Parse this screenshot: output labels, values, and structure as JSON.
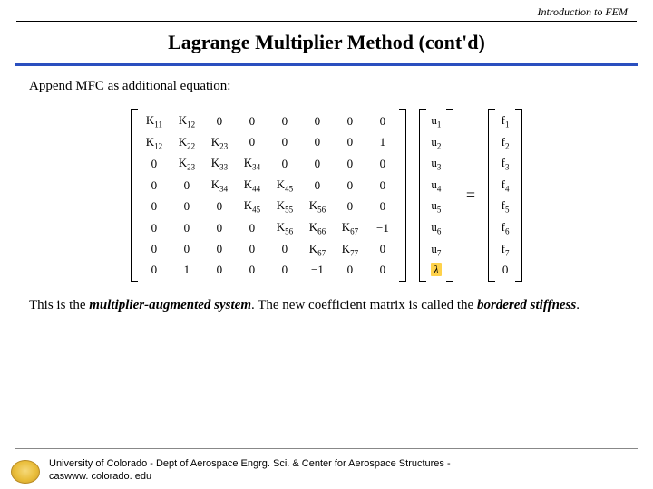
{
  "header": {
    "right": "Introduction to FEM"
  },
  "title": "Lagrange Multiplier Method (cont'd)",
  "intro": "Append MFC as additional equation:",
  "K": [
    [
      "K<sub class='sub'>11</sub>",
      "K<sub class='sub'>12</sub>",
      "0",
      "0",
      "0",
      "0",
      "0",
      "0"
    ],
    [
      "K<sub class='sub'>12</sub>",
      "K<sub class='sub'>22</sub>",
      "K<sub class='sub'>23</sub>",
      "0",
      "0",
      "0",
      "0",
      "1"
    ],
    [
      "0",
      "K<sub class='sub'>23</sub>",
      "K<sub class='sub'>33</sub>",
      "K<sub class='sub'>34</sub>",
      "0",
      "0",
      "0",
      "0"
    ],
    [
      "0",
      "0",
      "K<sub class='sub'>34</sub>",
      "K<sub class='sub'>44</sub>",
      "K<sub class='sub'>45</sub>",
      "0",
      "0",
      "0"
    ],
    [
      "0",
      "0",
      "0",
      "K<sub class='sub'>45</sub>",
      "K<sub class='sub'>55</sub>",
      "K<sub class='sub'>56</sub>",
      "0",
      "0"
    ],
    [
      "0",
      "0",
      "0",
      "0",
      "K<sub class='sub'>56</sub>",
      "K<sub class='sub'>66</sub>",
      "K<sub class='sub'>67</sub>",
      "−1"
    ],
    [
      "0",
      "0",
      "0",
      "0",
      "0",
      "K<sub class='sub'>67</sub>",
      "K<sub class='sub'>77</sub>",
      "0"
    ],
    [
      "0",
      "1",
      "0",
      "0",
      "0",
      "−1",
      "0",
      "0"
    ]
  ],
  "u": [
    "u<sub class='sub'>1</sub>",
    "u<sub class='sub'>2</sub>",
    "u<sub class='sub'>3</sub>",
    "u<sub class='sub'>4</sub>",
    "u<sub class='sub'>5</sub>",
    "u<sub class='sub'>6</sub>",
    "u<sub class='sub'>7</sub>",
    "<span class='highlight lambda-cell'>λ</span>"
  ],
  "f": [
    "f<sub class='sub'>1</sub>",
    "f<sub class='sub'>2</sub>",
    "f<sub class='sub'>3</sub>",
    "f<sub class='sub'>4</sub>",
    "f<sub class='sub'>5</sub>",
    "f<sub class='sub'>6</sub>",
    "f<sub class='sub'>7</sub>",
    "0"
  ],
  "conclusion_pre": "This is the ",
  "conclusion_em1": "multiplier-augmented system",
  "conclusion_mid": ".  The new coefficient matrix is called the ",
  "conclusion_em2": "bordered stiffness",
  "conclusion_post": ".",
  "footer": {
    "line1": "University of Colorado - Dept of Aerospace Engrg. Sci. & Center for Aerospace Structures -",
    "line2": "caswww. colorado. edu"
  },
  "style": {
    "accent_color": "#2a4fbf",
    "highlight_color": "#ffd24a",
    "title_fontsize": 22,
    "body_fontsize": 15,
    "matrix_fontsize": 13
  }
}
